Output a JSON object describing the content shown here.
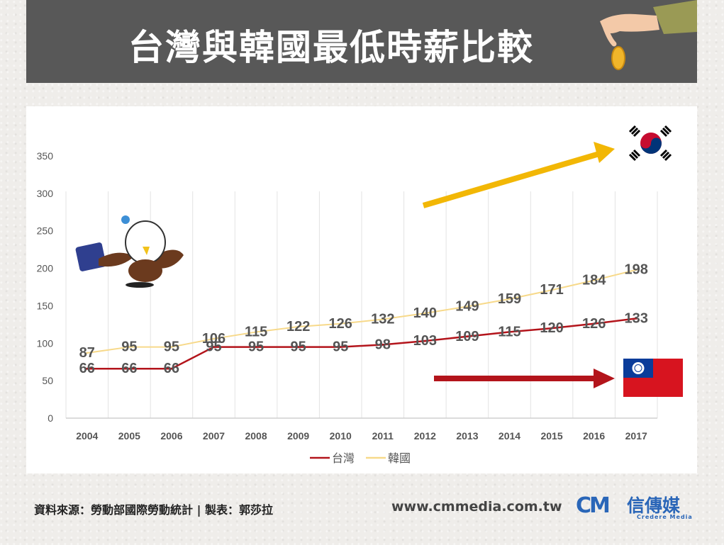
{
  "header": {
    "title": "台灣與韓國最低時薪比較"
  },
  "footer": {
    "source": "資料來源：勞動部國際勞動統計 | 製表：郭莎拉",
    "url": "www.cmmedia.com.tw",
    "logo_mark": "CM",
    "logo_name": "信傳媒",
    "logo_en": "Credere Media"
  },
  "chart_data": {
    "type": "line",
    "categories": [
      "2004",
      "2005",
      "2006",
      "2007",
      "2008",
      "2009",
      "2010",
      "2011",
      "2012",
      "2013",
      "2014",
      "2015",
      "2016",
      "2017"
    ],
    "series": [
      {
        "name": "台灣",
        "color": "#b3141b",
        "values": [
          66,
          66,
          66,
          95,
          95,
          95,
          95,
          98,
          103,
          109,
          115,
          120,
          126,
          133
        ]
      },
      {
        "name": "韓國",
        "color": "#f7d98a",
        "values": [
          87,
          95,
          95,
          106,
          115,
          122,
          126,
          132,
          140,
          149,
          159,
          171,
          184,
          198
        ]
      }
    ],
    "yticks": [
      0,
      50,
      100,
      150,
      200,
      250,
      300,
      350
    ],
    "ylim": [
      0,
      350
    ],
    "grid": "vertical",
    "legend_position": "bottom",
    "arrow_colors": {
      "korea": "#f2b705",
      "taiwan": "#b3141b"
    }
  }
}
